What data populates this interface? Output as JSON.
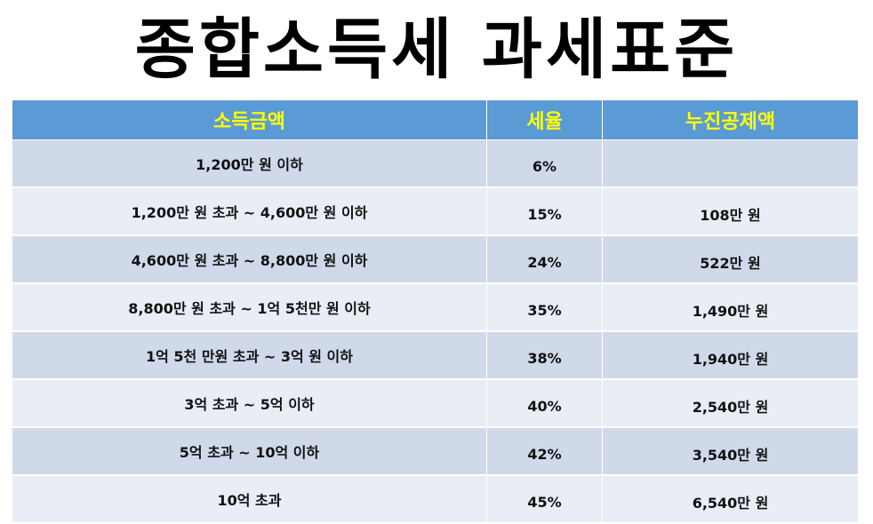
{
  "title": "종합소득세 과세표준",
  "headers": {
    "income": "소득금액",
    "rate": "세율",
    "deduction": "누진공제액"
  },
  "rows": [
    {
      "income": "1,200만 원 이하",
      "rate": "6%",
      "deduction": ""
    },
    {
      "income": "1,200만 원 초과 ~ 4,600만 원 이하",
      "rate": "15%",
      "deduction": "108만 원"
    },
    {
      "income": "4,600만 원 초과 ~ 8,800만 원 이하",
      "rate": "24%",
      "deduction": "522만 원"
    },
    {
      "income": "8,800만 원 초과 ~ 1억 5천만 원 이하",
      "rate": "35%",
      "deduction": "1,490만 원"
    },
    {
      "income": "1억 5천 만원 초과 ~ 3억 원 이하",
      "rate": "38%",
      "deduction": "1,940만 원"
    },
    {
      "income": "3억 초과 ~ 5억 이하",
      "rate": "40%",
      "deduction": "2,540만 원"
    },
    {
      "income": "5억 초과 ~ 10억 이하",
      "rate": "42%",
      "deduction": "3,540만 원"
    },
    {
      "income": "10억 초과",
      "rate": "45%",
      "deduction": "6,540만 원"
    }
  ],
  "colors": {
    "header_bg": "#5b9bd5",
    "header_text": "#ffff00",
    "row_odd": "#cfd9ea",
    "row_even": "#e9eef6"
  }
}
